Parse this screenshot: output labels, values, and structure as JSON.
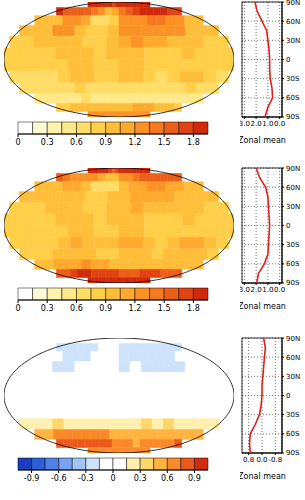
{
  "chart_data": [
    {
      "type": "map",
      "xlim": [
        -180,
        180
      ],
      "ylim": [
        -90,
        90
      ],
      "tick_labels": false,
      "lons": [
        -170,
        -150,
        -130,
        -110,
        -90,
        -70,
        -50,
        -30,
        -10,
        10,
        30,
        50,
        70,
        90,
        110,
        130,
        150,
        170
      ],
      "lats": [
        82.5,
        67.5,
        52.5,
        37.5,
        22.5,
        7.5,
        -7.5,
        -22.5,
        -37.5,
        -52.5,
        -67.5,
        -82.5
      ],
      "cells": [
        [
          2.0,
          2.0,
          2.1,
          2.1,
          2.0,
          1.9,
          1.8,
          1.7,
          1.8,
          1.9,
          2.0,
          2.1,
          2.1,
          2.1,
          2.0,
          2.0,
          2.0,
          2.0
        ],
        [
          1.8,
          1.6,
          1.5,
          1.6,
          1.6,
          1.4,
          1.2,
          1.0,
          1.1,
          1.4,
          1.6,
          1.7,
          1.8,
          1.8,
          1.8,
          1.8,
          1.7,
          1.7
        ],
        [
          0.9,
          0.9,
          1.0,
          1.3,
          1.3,
          1.1,
          0.6,
          0.6,
          0.8,
          1.2,
          1.3,
          1.3,
          1.4,
          1.4,
          1.3,
          1.2,
          1.0,
          0.9
        ],
        [
          0.9,
          0.9,
          1.0,
          1.2,
          1.2,
          0.9,
          0.8,
          0.8,
          1.0,
          1.2,
          1.2,
          1.3,
          1.3,
          1.3,
          1.2,
          1.0,
          0.9,
          0.9
        ],
        [
          0.8,
          0.8,
          0.9,
          1.0,
          1.0,
          0.9,
          0.8,
          0.8,
          1.0,
          1.1,
          1.2,
          1.1,
          1.1,
          1.0,
          1.0,
          0.9,
          0.8,
          0.8
        ],
        [
          0.8,
          0.8,
          0.8,
          0.8,
          0.9,
          1.0,
          1.0,
          0.8,
          0.9,
          1.0,
          1.0,
          0.8,
          0.8,
          0.8,
          0.9,
          0.8,
          0.8,
          0.8
        ],
        [
          0.8,
          0.8,
          0.8,
          0.8,
          0.8,
          1.0,
          1.0,
          0.8,
          0.8,
          1.0,
          1.0,
          0.8,
          0.8,
          0.8,
          0.8,
          0.8,
          0.8,
          0.8
        ],
        [
          0.7,
          0.7,
          0.7,
          0.7,
          0.8,
          1.0,
          0.9,
          0.8,
          0.8,
          1.0,
          1.0,
          0.8,
          0.7,
          0.8,
          1.0,
          1.0,
          0.8,
          0.7
        ],
        [
          0.6,
          0.6,
          0.6,
          0.6,
          0.7,
          0.8,
          0.7,
          0.6,
          0.6,
          0.7,
          0.7,
          0.6,
          0.6,
          0.6,
          0.7,
          0.8,
          0.7,
          0.6
        ],
        [
          0.5,
          0.5,
          0.5,
          0.5,
          0.5,
          0.6,
          0.5,
          0.5,
          0.5,
          0.5,
          0.5,
          0.5,
          0.5,
          0.5,
          0.5,
          0.5,
          0.5,
          0.5
        ],
        [
          0.8,
          0.8,
          0.9,
          1.0,
          1.0,
          0.9,
          0.9,
          0.9,
          1.0,
          1.0,
          1.0,
          1.1,
          1.1,
          1.1,
          1.0,
          0.9,
          0.9,
          0.8
        ],
        [
          1.2,
          1.2,
          1.2,
          1.2,
          1.2,
          1.2,
          1.3,
          1.3,
          1.3,
          1.3,
          1.3,
          1.3,
          1.3,
          1.3,
          1.3,
          1.3,
          1.2,
          1.2
        ]
      ],
      "colorbar": {
        "bounds": [
          0,
          0.15,
          0.3,
          0.45,
          0.6,
          0.75,
          0.9,
          1.05,
          1.2,
          1.35,
          1.5,
          1.65,
          1.8,
          1.95
        ],
        "colors": [
          "#ffffff",
          "#fffbd6",
          "#fff3b0",
          "#ffe98a",
          "#ffdd66",
          "#ffcf4a",
          "#ffbe3a",
          "#ffa92e",
          "#fb9226",
          "#f57a1f",
          "#ec5f18",
          "#e04412",
          "#cf2a0c"
        ],
        "ticks": [
          0,
          0.3,
          0.6,
          0.9,
          1.2,
          1.5,
          1.8
        ]
      },
      "zonal_mean": {
        "type": "line",
        "xlabel": "Zonal mean",
        "color": "#e0201b",
        "marker": "none",
        "line_style": "solid",
        "grid": true,
        "lats": [
          90,
          75,
          60,
          45,
          30,
          15,
          0,
          -15,
          -30,
          -45,
          -60,
          -75,
          -90
        ],
        "values": [
          2.1,
          1.9,
          1.5,
          1.1,
          1.0,
          0.9,
          0.85,
          0.85,
          0.8,
          0.65,
          0.6,
          1.0,
          1.25
        ],
        "xlim": [
          3.2,
          -0.2
        ],
        "xticks": [
          {
            "value": 3,
            "label": "3.0"
          },
          {
            "value": 2,
            "label": "2.0"
          },
          {
            "value": 1,
            "label": "1.0"
          },
          {
            "value": 0,
            "label": "0.0"
          }
        ],
        "ylim": [
          -90,
          90
        ],
        "yticks": [
          {
            "value": 90,
            "label": "90N"
          },
          {
            "value": 60,
            "label": "60N"
          },
          {
            "value": 30,
            "label": "30N"
          },
          0,
          {
            "value": -30,
            "label": "30S"
          },
          {
            "value": -60,
            "label": "60S"
          },
          {
            "value": -90,
            "label": "90S"
          }
        ]
      }
    },
    {
      "type": "map",
      "xlim": [
        -180,
        180
      ],
      "ylim": [
        -90,
        90
      ],
      "tick_labels": false,
      "lons": [
        -170,
        -150,
        -130,
        -110,
        -90,
        -70,
        -50,
        -30,
        -10,
        10,
        30,
        50,
        70,
        90,
        110,
        130,
        150,
        170
      ],
      "lats": [
        82.5,
        67.5,
        52.5,
        37.5,
        22.5,
        7.5,
        -7.5,
        -22.5,
        -37.5,
        -52.5,
        -67.5,
        -82.5
      ],
      "cells": [
        [
          1.9,
          1.9,
          2.0,
          2.0,
          1.9,
          1.8,
          1.7,
          1.6,
          1.7,
          1.8,
          1.9,
          2.0,
          2.0,
          2.0,
          1.9,
          1.9,
          1.9,
          1.9
        ],
        [
          1.6,
          1.4,
          1.3,
          1.3,
          1.3,
          1.2,
          1.1,
          0.9,
          1.0,
          1.2,
          1.3,
          1.4,
          1.5,
          1.5,
          1.5,
          1.5,
          1.5,
          1.5
        ],
        [
          0.9,
          0.9,
          0.9,
          1.1,
          1.1,
          0.9,
          0.6,
          0.6,
          0.7,
          1.0,
          1.1,
          1.1,
          1.2,
          1.2,
          1.1,
          1.1,
          0.9,
          0.9
        ],
        [
          0.9,
          0.9,
          0.9,
          1.0,
          1.0,
          0.9,
          0.8,
          0.8,
          0.9,
          1.0,
          1.1,
          1.1,
          1.1,
          1.1,
          1.0,
          0.9,
          0.9,
          0.9
        ],
        [
          0.8,
          0.8,
          0.8,
          0.9,
          0.9,
          0.9,
          0.8,
          0.8,
          0.9,
          1.0,
          1.1,
          1.0,
          1.0,
          1.0,
          0.9,
          0.9,
          0.8,
          0.8
        ],
        [
          0.8,
          0.8,
          0.8,
          0.8,
          0.9,
          1.0,
          1.0,
          0.8,
          0.9,
          1.0,
          1.0,
          0.8,
          0.8,
          0.8,
          0.9,
          0.8,
          0.8,
          0.8
        ],
        [
          0.8,
          0.8,
          0.8,
          0.8,
          0.8,
          1.0,
          1.0,
          0.8,
          0.8,
          1.0,
          1.0,
          0.8,
          0.8,
          0.8,
          0.8,
          0.8,
          0.8,
          0.8
        ],
        [
          0.8,
          0.8,
          0.8,
          0.8,
          0.9,
          1.1,
          1.0,
          0.9,
          0.9,
          1.1,
          1.1,
          0.9,
          0.8,
          0.9,
          1.1,
          1.1,
          0.9,
          0.8
        ],
        [
          0.8,
          0.8,
          0.8,
          0.9,
          0.9,
          1.0,
          0.9,
          0.8,
          0.8,
          0.9,
          0.9,
          0.9,
          0.8,
          0.9,
          0.9,
          1.0,
          0.9,
          0.8
        ],
        [
          1.0,
          1.0,
          1.1,
          1.1,
          1.1,
          1.2,
          1.1,
          1.1,
          1.0,
          1.0,
          1.0,
          1.0,
          1.0,
          1.0,
          1.0,
          1.0,
          1.0,
          1.0
        ],
        [
          1.6,
          1.6,
          1.7,
          1.8,
          1.8,
          1.7,
          1.7,
          1.7,
          1.7,
          1.6,
          1.6,
          1.6,
          1.7,
          1.7,
          1.7,
          1.6,
          1.6,
          1.6
        ],
        [
          1.9,
          1.9,
          1.9,
          1.9,
          1.9,
          1.9,
          2.0,
          2.0,
          2.0,
          2.0,
          2.0,
          2.0,
          2.0,
          2.0,
          2.0,
          1.9,
          1.9,
          1.9
        ]
      ],
      "colorbar": {
        "bounds": [
          0,
          0.15,
          0.3,
          0.45,
          0.6,
          0.75,
          0.9,
          1.05,
          1.2,
          1.35,
          1.5,
          1.65,
          1.8,
          1.95
        ],
        "colors": [
          "#ffffff",
          "#fffbd6",
          "#fff3b0",
          "#ffe98a",
          "#ffdd66",
          "#ffcf4a",
          "#ffbe3a",
          "#ffa92e",
          "#fb9226",
          "#f57a1f",
          "#ec5f18",
          "#e04412",
          "#cf2a0c"
        ],
        "ticks": [
          0,
          0.3,
          0.6,
          0.9,
          1.2,
          1.5,
          1.8
        ]
      },
      "zonal_mean": {
        "type": "line",
        "xlabel": "Zonal mean",
        "color": "#e0201b",
        "marker": "none",
        "line_style": "solid",
        "grid": true,
        "lats": [
          90,
          75,
          60,
          45,
          30,
          15,
          0,
          -15,
          -30,
          -45,
          -60,
          -75,
          -90
        ],
        "values": [
          2.0,
          1.7,
          1.2,
          1.0,
          0.95,
          0.9,
          0.85,
          0.9,
          0.95,
          1.0,
          1.3,
          1.8,
          1.95
        ],
        "xlim": [
          3.2,
          -0.2
        ],
        "xticks": [
          {
            "value": 3,
            "label": "3.0"
          },
          {
            "value": 2,
            "label": "2.0"
          },
          {
            "value": 1,
            "label": "1.0"
          },
          {
            "value": 0,
            "label": "0.0"
          }
        ],
        "ylim": [
          -90,
          90
        ],
        "yticks": [
          {
            "value": 90,
            "label": "90N"
          },
          {
            "value": 60,
            "label": "60N"
          },
          {
            "value": 30,
            "label": "30N"
          },
          0,
          {
            "value": -30,
            "label": "30S"
          },
          {
            "value": -60,
            "label": "60S"
          },
          {
            "value": -90,
            "label": "90S"
          }
        ]
      }
    },
    {
      "type": "map",
      "xlim": [
        -180,
        180
      ],
      "ylim": [
        -90,
        90
      ],
      "tick_labels": false,
      "lons": [
        -170,
        -150,
        -130,
        -110,
        -90,
        -70,
        -50,
        -30,
        -10,
        10,
        30,
        50,
        70,
        90,
        110,
        130,
        150,
        170
      ],
      "lats": [
        82.5,
        67.5,
        52.5,
        37.5,
        22.5,
        7.5,
        -7.5,
        -22.5,
        -37.5,
        -52.5,
        -67.5,
        -82.5
      ],
      "cells": [
        [
          -0.1,
          -0.1,
          -0.1,
          -0.1,
          -0.1,
          -0.1,
          -0.1,
          -0.1,
          -0.1,
          -0.1,
          -0.1,
          -0.1,
          -0.1,
          -0.1,
          -0.1,
          -0.1,
          -0.1,
          -0.1
        ],
        [
          -0.2,
          -0.2,
          -0.2,
          -0.3,
          -0.3,
          -0.2,
          -0.1,
          -0.1,
          -0.1,
          -0.2,
          -0.3,
          -0.3,
          -0.3,
          -0.3,
          -0.3,
          -0.3,
          -0.2,
          -0.2
        ],
        [
          0,
          0,
          -0.1,
          -0.2,
          -0.2,
          -0.2,
          0,
          0,
          -0.1,
          -0.2,
          -0.2,
          -0.2,
          -0.2,
          -0.2,
          -0.2,
          -0.1,
          -0.1,
          0
        ],
        [
          0,
          0,
          -0.1,
          -0.2,
          -0.2,
          0,
          0,
          0,
          -0.1,
          -0.2,
          -0.1,
          -0.2,
          -0.2,
          -0.2,
          -0.2,
          -0.1,
          0,
          0
        ],
        [
          0,
          0,
          -0.1,
          -0.1,
          -0.1,
          0,
          0,
          0,
          -0.1,
          -0.1,
          -0.1,
          -0.1,
          -0.1,
          0,
          -0.1,
          0,
          0,
          0
        ],
        [
          0,
          0,
          0,
          0,
          0,
          0,
          0,
          0,
          0,
          0,
          0,
          0,
          0,
          0,
          0,
          0,
          0,
          0
        ],
        [
          0,
          0,
          0,
          0,
          0,
          0,
          0,
          0,
          0,
          0,
          0,
          0,
          0,
          0,
          0,
          0,
          0,
          0
        ],
        [
          0.1,
          0.1,
          0.1,
          0.1,
          0.1,
          0.1,
          0.1,
          0.1,
          0.1,
          0.1,
          0.1,
          0.1,
          0.1,
          0.1,
          0.1,
          0.1,
          0.1,
          0.1
        ],
        [
          0.2,
          0.2,
          0.2,
          0.3,
          0.2,
          0.2,
          0.2,
          0.2,
          0.2,
          0.2,
          0.2,
          0.3,
          0.2,
          0.3,
          0.2,
          0.2,
          0.2,
          0.2
        ],
        [
          0.5,
          0.5,
          0.6,
          0.6,
          0.6,
          0.6,
          0.6,
          0.6,
          0.5,
          0.5,
          0.5,
          0.5,
          0.5,
          0.5,
          0.5,
          0.5,
          0.5,
          0.5
        ],
        [
          0.8,
          0.8,
          0.8,
          0.8,
          0.8,
          0.8,
          0.8,
          0.8,
          0.7,
          0.6,
          0.6,
          0.5,
          0.6,
          0.6,
          0.7,
          0.7,
          0.7,
          0.8
        ],
        [
          0.7,
          0.7,
          0.7,
          0.7,
          0.7,
          0.7,
          0.7,
          0.7,
          0.7,
          0.7,
          0.7,
          0.7,
          0.7,
          0.7,
          0.7,
          0.7,
          0.7,
          0.7
        ]
      ],
      "colorbar": {
        "bounds": [
          -1.05,
          -0.9,
          -0.75,
          -0.6,
          -0.45,
          -0.3,
          -0.15,
          0,
          0.15,
          0.3,
          0.45,
          0.6,
          0.75,
          0.9,
          1.05
        ],
        "colors": [
          "#1d3fbf",
          "#2f5fd8",
          "#4f80e8",
          "#77a3f2",
          "#a2c4f8",
          "#cfe2fb",
          "#ffffff",
          "#ffffff",
          "#fff0b0",
          "#ffd66a",
          "#ffb340",
          "#f98a2a",
          "#eb5a1a",
          "#d22c10"
        ],
        "ticks": [
          -0.9,
          -0.6,
          -0.3,
          0,
          0.3,
          0.6,
          0.9
        ]
      },
      "zonal_mean": {
        "type": "line",
        "xlabel": "Zonal mean",
        "color": "#e0201b",
        "marker": "none",
        "line_style": "solid",
        "grid": true,
        "lats": [
          90,
          75,
          60,
          45,
          30,
          15,
          0,
          -15,
          -30,
          -45,
          -60,
          -75,
          -90
        ],
        "values": [
          -0.1,
          -0.2,
          -0.15,
          -0.1,
          -0.05,
          0,
          0,
          0.05,
          0.15,
          0.4,
          0.7,
          0.75,
          0.7
        ],
        "xlim": [
          1.2,
          -1.2
        ],
        "xticks": [
          0.8,
          {
            "value": 0,
            "label": "0.0"
          },
          -0.8
        ],
        "ylim": [
          -90,
          90
        ],
        "yticks": [
          {
            "value": 90,
            "label": "90N"
          },
          {
            "value": 60,
            "label": "60N"
          },
          {
            "value": 30,
            "label": "30N"
          },
          0,
          {
            "value": -30,
            "label": "30S"
          },
          {
            "value": -60,
            "label": "60S"
          },
          {
            "value": -90,
            "label": "90S"
          }
        ]
      }
    }
  ]
}
